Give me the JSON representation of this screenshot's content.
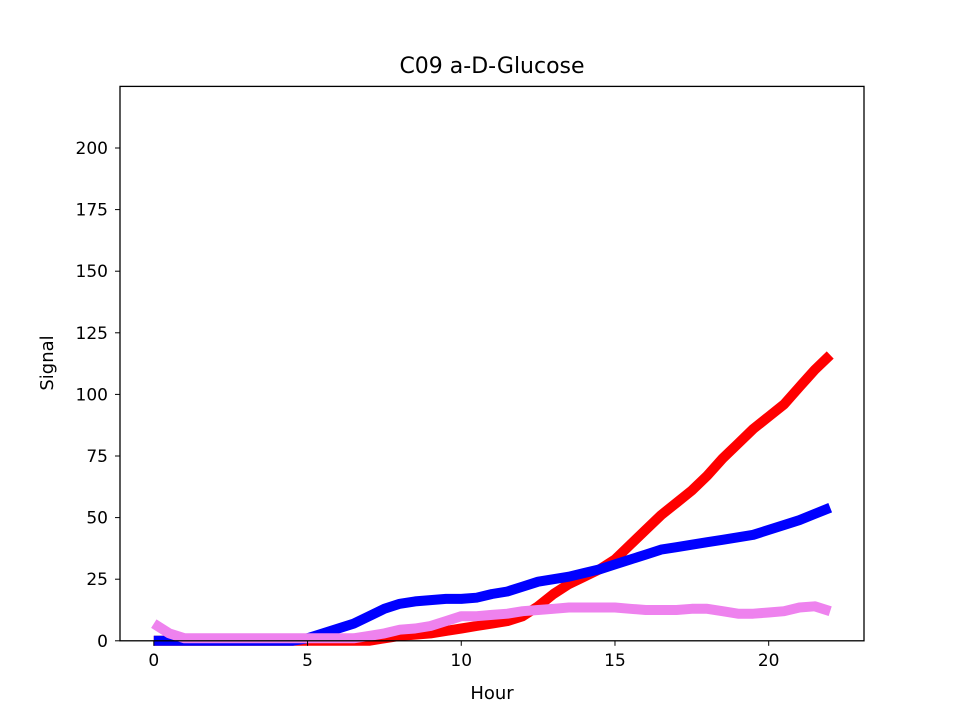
{
  "chart_data": {
    "type": "line",
    "title": "C09 a-D-Glucose",
    "xlabel": "Hour",
    "ylabel": "Signal",
    "xlim": [
      -1.1,
      23.1
    ],
    "ylim": [
      0,
      225
    ],
    "xticks": [
      0,
      5,
      10,
      15,
      20
    ],
    "yticks": [
      0,
      25,
      50,
      75,
      100,
      125,
      150,
      175,
      200
    ],
    "grid": false,
    "legend": "none",
    "x": [
      0,
      0.5,
      1,
      1.5,
      2,
      2.5,
      3,
      3.5,
      4,
      4.5,
      5,
      5.5,
      6,
      6.5,
      7,
      7.5,
      8,
      8.5,
      9,
      9.5,
      10,
      10.5,
      11,
      11.5,
      12,
      12.5,
      13,
      13.5,
      14,
      14.5,
      15,
      15.5,
      16,
      16.5,
      17,
      17.5,
      18,
      18.5,
      19,
      19.5,
      20,
      20.5,
      21,
      21.5,
      22
    ],
    "series": [
      {
        "color": "#ff0000",
        "values": [
          0,
          0,
          0,
          0,
          0,
          0,
          0,
          0,
          0,
          0,
          0,
          0,
          0,
          0,
          0,
          1,
          2,
          2.5,
          3,
          4,
          5,
          6,
          7,
          8,
          10,
          14,
          19,
          23,
          26,
          29,
          33,
          39,
          45,
          51,
          56,
          61,
          67,
          74,
          80,
          86,
          91,
          96,
          103,
          110,
          116
        ]
      },
      {
        "color": "#0000ff",
        "values": [
          0,
          0,
          0,
          0,
          0,
          0,
          0,
          0,
          0,
          0,
          1,
          3,
          5,
          7,
          10,
          13,
          15,
          16,
          16.5,
          17,
          17,
          17.5,
          19,
          20,
          22,
          24,
          25,
          26,
          27.5,
          29,
          31,
          33,
          35,
          37,
          38,
          39,
          40,
          41,
          42,
          43,
          45,
          47,
          49,
          51.5,
          54
        ]
      },
      {
        "color": "#ee82ee",
        "values": [
          7,
          3,
          1,
          1,
          1,
          1,
          1,
          1,
          1,
          1,
          1,
          1,
          1,
          1,
          2,
          3,
          4.5,
          5,
          6,
          8,
          10,
          10,
          10.5,
          11,
          12,
          12.5,
          13,
          13.5,
          13.5,
          13.5,
          13.5,
          13,
          12.5,
          12.5,
          12.5,
          13,
          13,
          12,
          11,
          11,
          11.5,
          12,
          13.5,
          14,
          12
        ]
      }
    ]
  }
}
